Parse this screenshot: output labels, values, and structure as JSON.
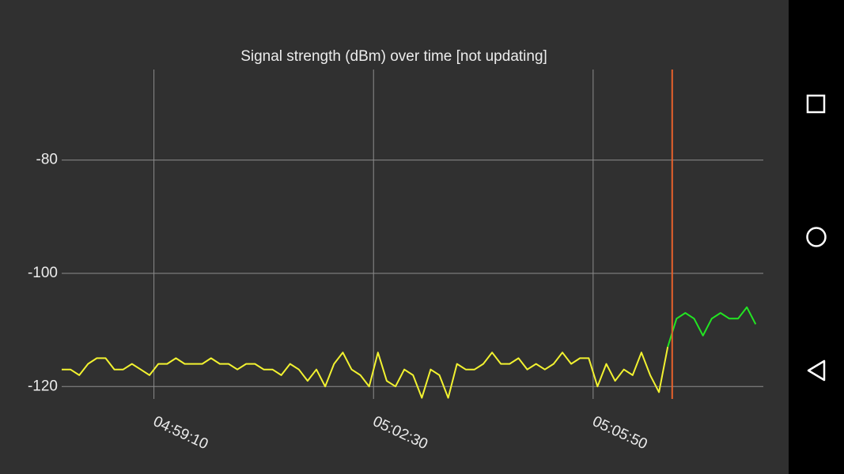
{
  "chart_data": {
    "type": "line",
    "title": "Signal strength (dBm) over time [not updating]",
    "x": [
      17866,
      17874,
      17882,
      17890,
      17898,
      17906,
      17914,
      17922,
      17930,
      17938,
      17946,
      17954,
      17962,
      17970,
      17978,
      17986,
      17994,
      18002,
      18010,
      18018,
      18026,
      18034,
      18042,
      18050,
      18058,
      18066,
      18074,
      18082,
      18090,
      18098,
      18106,
      18114,
      18122,
      18130,
      18138,
      18146,
      18154,
      18162,
      18170,
      18178,
      18186,
      18194,
      18202,
      18210,
      18218,
      18226,
      18234,
      18242,
      18250,
      18258,
      18266,
      18274,
      18282,
      18290,
      18298,
      18306,
      18314,
      18322,
      18330,
      18338,
      18346,
      18354,
      18362,
      18370,
      18378,
      18386,
      18394,
      18402,
      18410,
      18418,
      18426,
      18434,
      18442,
      18450,
      18458,
      18466,
      18474,
      18482,
      18490,
      18498
    ],
    "series": [
      {
        "color": "#f2f230",
        "values": [
          -117,
          -117,
          -118,
          -116,
          -115,
          -115,
          -117,
          -117,
          -116,
          -117,
          -118,
          -116,
          -116,
          -115,
          -116,
          -116,
          -116,
          -115,
          -116,
          -116,
          -117,
          -116,
          -116,
          -117,
          -117,
          -118,
          -116,
          -117,
          -119,
          -117,
          -120,
          -116,
          -114,
          -117,
          -118,
          -120,
          -114,
          -119,
          -120,
          -117,
          -118,
          -122,
          -117,
          -118,
          -122,
          -116,
          -117,
          -117,
          -116,
          -114,
          -116,
          -116,
          -115,
          -117,
          -116,
          -117,
          -116,
          -114,
          -116,
          -115,
          -115,
          -120,
          -116,
          -119,
          -117,
          -118,
          -114,
          -118,
          -121,
          -113,
          null,
          null,
          null,
          null,
          null,
          null,
          null,
          null,
          null,
          null
        ]
      },
      {
        "color": "#22e622",
        "values": [
          null,
          null,
          null,
          null,
          null,
          null,
          null,
          null,
          null,
          null,
          null,
          null,
          null,
          null,
          null,
          null,
          null,
          null,
          null,
          null,
          null,
          null,
          null,
          null,
          null,
          null,
          null,
          null,
          null,
          null,
          null,
          null,
          null,
          null,
          null,
          null,
          null,
          null,
          null,
          null,
          null,
          null,
          null,
          null,
          null,
          null,
          null,
          null,
          null,
          null,
          null,
          null,
          null,
          null,
          null,
          null,
          null,
          null,
          null,
          null,
          null,
          null,
          null,
          null,
          null,
          null,
          null,
          null,
          null,
          -113,
          -108,
          -107,
          -108,
          -111,
          -108,
          -107,
          -108,
          -108,
          -106,
          -109
        ]
      }
    ],
    "xlim": [
      17866,
      18505
    ],
    "xticks": [
      {
        "value": 17950,
        "label": "04:59:10"
      },
      {
        "value": 18150,
        "label": "05:02:30"
      },
      {
        "value": 18350,
        "label": "05:05:50"
      }
    ],
    "ylim": [
      -122.2,
      -64
    ],
    "yticks": [
      -80,
      -100,
      -120
    ],
    "grid": true,
    "marker_x": 18422,
    "marker_color": "#e8612c"
  }
}
